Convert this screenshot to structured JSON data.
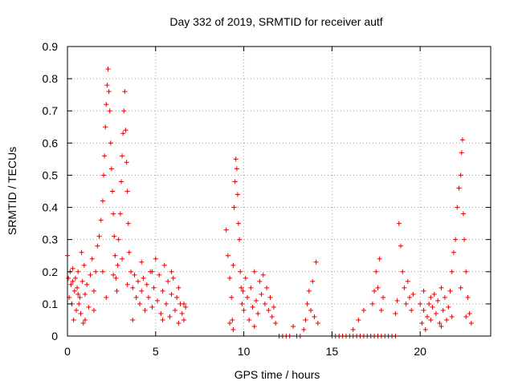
{
  "chart_data": {
    "type": "scatter",
    "title": "Day 332 of 2019, SRMTID for receiver autf",
    "xlabel": "GPS time / hours",
    "ylabel": "SRMTID / TECUs",
    "xlim": [
      0,
      24
    ],
    "ylim": [
      0,
      0.9
    ],
    "x_ticks": [
      "0",
      "5",
      "10",
      "15",
      "20"
    ],
    "y_ticks": [
      "0",
      "0.1",
      "0.2",
      "0.3",
      "0.4",
      "0.5",
      "0.6",
      "0.7",
      "0.8",
      "0.9"
    ],
    "grid": true,
    "marker": "+",
    "color": "#e00000",
    "series": [
      {
        "name": "autf",
        "points": [
          [
            0.0,
            0.25
          ],
          [
            0.05,
            0.18
          ],
          [
            0.1,
            0.12
          ],
          [
            0.15,
            0.2
          ],
          [
            0.2,
            0.16
          ],
          [
            0.25,
            0.1
          ],
          [
            0.3,
            0.21
          ],
          [
            0.35,
            0.05
          ],
          [
            0.4,
            0.14
          ],
          [
            0.45,
            0.18
          ],
          [
            0.5,
            0.08
          ],
          [
            0.55,
            0.15
          ],
          [
            0.6,
            0.2
          ],
          [
            0.65,
            0.1
          ],
          [
            0.7,
            0.12
          ],
          [
            0.75,
            0.07
          ],
          [
            0.8,
            0.26
          ],
          [
            0.85,
            0.17
          ],
          [
            0.9,
            0.04
          ],
          [
            0.95,
            0.22
          ],
          [
            1.0,
            0.13
          ],
          [
            1.1,
            0.16
          ],
          [
            1.2,
            0.09
          ],
          [
            1.3,
            0.19
          ],
          [
            1.4,
            0.24
          ],
          [
            1.5,
            0.14
          ],
          [
            1.6,
            0.2
          ],
          [
            1.7,
            0.28
          ],
          [
            1.8,
            0.31
          ],
          [
            1.9,
            0.36
          ],
          [
            2.0,
            0.42
          ],
          [
            2.05,
            0.5
          ],
          [
            2.1,
            0.56
          ],
          [
            2.15,
            0.65
          ],
          [
            2.2,
            0.72
          ],
          [
            2.25,
            0.78
          ],
          [
            2.3,
            0.83
          ],
          [
            2.35,
            0.76
          ],
          [
            2.4,
            0.7
          ],
          [
            2.45,
            0.6
          ],
          [
            2.5,
            0.52
          ],
          [
            2.55,
            0.45
          ],
          [
            2.6,
            0.38
          ],
          [
            2.65,
            0.31
          ],
          [
            2.7,
            0.25
          ],
          [
            2.75,
            0.18
          ],
          [
            2.8,
            0.14
          ],
          [
            2.85,
            0.22
          ],
          [
            2.9,
            0.3
          ],
          [
            3.0,
            0.38
          ],
          [
            3.05,
            0.48
          ],
          [
            3.1,
            0.56
          ],
          [
            3.15,
            0.63
          ],
          [
            3.2,
            0.7
          ],
          [
            3.25,
            0.76
          ],
          [
            3.3,
            0.64
          ],
          [
            3.35,
            0.54
          ],
          [
            3.4,
            0.45
          ],
          [
            3.45,
            0.35
          ],
          [
            3.5,
            0.26
          ],
          [
            3.6,
            0.2
          ],
          [
            3.7,
            0.15
          ],
          [
            3.8,
            0.19
          ],
          [
            3.9,
            0.12
          ],
          [
            4.0,
            0.17
          ],
          [
            4.1,
            0.1
          ],
          [
            4.2,
            0.14
          ],
          [
            4.3,
            0.18
          ],
          [
            4.4,
            0.08
          ],
          [
            4.5,
            0.16
          ],
          [
            4.6,
            0.12
          ],
          [
            4.7,
            0.2
          ],
          [
            4.8,
            0.09
          ],
          [
            4.9,
            0.15
          ],
          [
            5.0,
            0.24
          ],
          [
            5.1,
            0.11
          ],
          [
            5.2,
            0.19
          ],
          [
            5.3,
            0.07
          ],
          [
            5.4,
            0.14
          ],
          [
            5.5,
            0.22
          ],
          [
            5.6,
            0.1
          ],
          [
            5.7,
            0.17
          ],
          [
            5.8,
            0.06
          ],
          [
            5.9,
            0.13
          ],
          [
            6.0,
            0.18
          ],
          [
            6.1,
            0.08
          ],
          [
            6.2,
            0.12
          ],
          [
            6.3,
            0.04
          ],
          [
            6.4,
            0.1
          ],
          [
            6.5,
            0.07
          ],
          [
            6.6,
            0.05
          ],
          [
            6.7,
            0.09
          ],
          [
            2.0,
            0.2
          ],
          [
            2.2,
            0.12
          ],
          [
            2.6,
            0.19
          ],
          [
            3.1,
            0.24
          ],
          [
            3.4,
            0.16
          ],
          [
            3.7,
            0.05
          ],
          [
            4.2,
            0.23
          ],
          [
            4.8,
            0.2
          ],
          [
            5.4,
            0.05
          ],
          [
            5.9,
            0.2
          ],
          [
            6.3,
            0.15
          ],
          [
            6.6,
            0.1
          ],
          [
            1.0,
            0.05
          ],
          [
            1.5,
            0.08
          ],
          [
            0.3,
            0.17
          ],
          [
            0.6,
            0.13
          ],
          [
            9.0,
            0.33
          ],
          [
            9.1,
            0.25
          ],
          [
            9.2,
            0.18
          ],
          [
            9.3,
            0.12
          ],
          [
            9.35,
            0.05
          ],
          [
            9.4,
            0.22
          ],
          [
            9.45,
            0.4
          ],
          [
            9.5,
            0.48
          ],
          [
            9.55,
            0.55
          ],
          [
            9.6,
            0.52
          ],
          [
            9.65,
            0.44
          ],
          [
            9.7,
            0.35
          ],
          [
            9.75,
            0.3
          ],
          [
            9.8,
            0.2
          ],
          [
            9.85,
            0.15
          ],
          [
            9.9,
            0.1
          ],
          [
            9.95,
            0.14
          ],
          [
            10.0,
            0.08
          ],
          [
            10.1,
            0.18
          ],
          [
            10.2,
            0.12
          ],
          [
            10.3,
            0.05
          ],
          [
            10.4,
            0.15
          ],
          [
            10.5,
            0.09
          ],
          [
            10.6,
            0.2
          ],
          [
            10.7,
            0.11
          ],
          [
            10.8,
            0.07
          ],
          [
            10.9,
            0.17
          ],
          [
            11.0,
            0.13
          ],
          [
            11.1,
            0.19
          ],
          [
            11.2,
            0.1
          ],
          [
            11.3,
            0.15
          ],
          [
            11.4,
            0.08
          ],
          [
            11.5,
            0.12
          ],
          [
            11.6,
            0.06
          ],
          [
            11.7,
            0.09
          ],
          [
            11.8,
            0.04
          ],
          [
            9.2,
            0.04
          ],
          [
            9.4,
            0.02
          ],
          [
            10.6,
            0.03
          ],
          [
            12.0,
            0.0
          ],
          [
            12.2,
            0.0
          ],
          [
            12.4,
            0.0
          ],
          [
            12.6,
            0.0
          ],
          [
            12.8,
            0.03
          ],
          [
            13.0,
            0.0
          ],
          [
            13.2,
            0.0
          ],
          [
            13.4,
            0.02
          ],
          [
            13.5,
            0.05
          ],
          [
            13.6,
            0.1
          ],
          [
            13.7,
            0.14
          ],
          [
            13.8,
            0.08
          ],
          [
            13.9,
            0.17
          ],
          [
            14.0,
            0.06
          ],
          [
            14.1,
            0.23
          ],
          [
            14.2,
            0.04
          ],
          [
            15.0,
            0.0
          ],
          [
            15.2,
            0.0
          ],
          [
            15.4,
            0.0
          ],
          [
            15.6,
            0.0
          ],
          [
            15.8,
            0.0
          ],
          [
            16.0,
            0.0
          ],
          [
            16.2,
            0.0
          ],
          [
            16.4,
            0.0
          ],
          [
            16.6,
            0.0
          ],
          [
            16.8,
            0.0
          ],
          [
            17.0,
            0.0
          ],
          [
            17.2,
            0.0
          ],
          [
            17.4,
            0.0
          ],
          [
            17.6,
            0.0
          ],
          [
            17.8,
            0.0
          ],
          [
            18.0,
            0.0
          ],
          [
            18.2,
            0.0
          ],
          [
            18.4,
            0.0
          ],
          [
            18.6,
            0.0
          ],
          [
            16.2,
            0.02
          ],
          [
            16.5,
            0.05
          ],
          [
            16.8,
            0.08
          ],
          [
            17.3,
            0.1
          ],
          [
            17.4,
            0.14
          ],
          [
            17.5,
            0.2
          ],
          [
            17.6,
            0.15
          ],
          [
            17.7,
            0.24
          ],
          [
            17.8,
            0.08
          ],
          [
            17.9,
            0.12
          ],
          [
            18.6,
            0.07
          ],
          [
            18.7,
            0.11
          ],
          [
            18.8,
            0.35
          ],
          [
            18.9,
            0.28
          ],
          [
            19.0,
            0.2
          ],
          [
            19.1,
            0.15
          ],
          [
            19.2,
            0.1
          ],
          [
            19.3,
            0.17
          ],
          [
            19.4,
            0.12
          ],
          [
            19.5,
            0.08
          ],
          [
            19.6,
            0.13
          ],
          [
            20.0,
            0.1
          ],
          [
            20.1,
            0.04
          ],
          [
            20.2,
            0.08
          ],
          [
            20.3,
            0.02
          ],
          [
            20.4,
            0.06
          ],
          [
            20.5,
            0.1
          ],
          [
            20.6,
            0.05
          ],
          [
            20.7,
            0.09
          ],
          [
            20.8,
            0.13
          ],
          [
            20.9,
            0.07
          ],
          [
            21.0,
            0.11
          ],
          [
            21.1,
            0.04
          ],
          [
            21.2,
            0.15
          ],
          [
            21.3,
            0.08
          ],
          [
            21.4,
            0.12
          ],
          [
            21.5,
            0.05
          ],
          [
            21.6,
            0.09
          ],
          [
            21.7,
            0.14
          ],
          [
            21.8,
            0.2
          ],
          [
            21.9,
            0.26
          ],
          [
            22.0,
            0.3
          ],
          [
            22.1,
            0.4
          ],
          [
            22.2,
            0.46
          ],
          [
            22.3,
            0.5
          ],
          [
            22.35,
            0.57
          ],
          [
            22.4,
            0.61
          ],
          [
            22.45,
            0.38
          ],
          [
            22.5,
            0.3
          ],
          [
            22.6,
            0.2
          ],
          [
            22.7,
            0.12
          ],
          [
            22.8,
            0.07
          ],
          [
            22.9,
            0.04
          ],
          [
            20.2,
            0.14
          ],
          [
            20.6,
            0.12
          ],
          [
            21.2,
            0.03
          ],
          [
            21.8,
            0.06
          ],
          [
            22.3,
            0.15
          ],
          [
            22.6,
            0.06
          ]
        ]
      }
    ]
  }
}
